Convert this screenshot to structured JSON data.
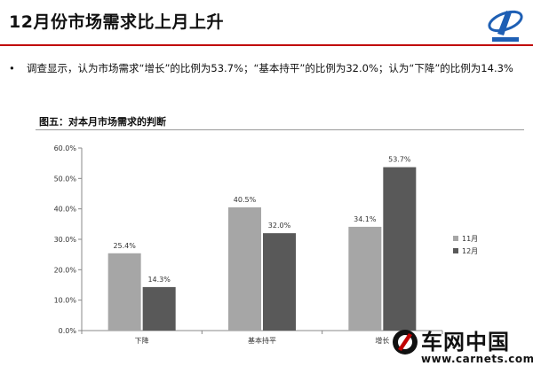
{
  "page": {
    "title": "12月份市场需求比上月上升",
    "bullet_symbol": "•",
    "bullet_text": "调查显示，认为市场需求“增长”的比例为53.7%；“基本持平”的比例为32.0%；认为“下降”的比例为14.3%",
    "figure_title": "图五：对本月市场需求的判断",
    "accent_color": "#c00000"
  },
  "watermark": {
    "name": "车网中国",
    "url": "www.carnets.com.cn",
    "icon": "car-wheel-logo-icon"
  },
  "logo": {
    "icon": "blue-swirl-logo-icon"
  },
  "chart_data": {
    "type": "bar",
    "categories": [
      "下降",
      "基本持平",
      "增长"
    ],
    "series": [
      {
        "name": "11月",
        "values": [
          25.4,
          40.5,
          34.1
        ],
        "value_labels": [
          "25.4%",
          "40.5%",
          "34.1%"
        ],
        "color": "#a6a6a6"
      },
      {
        "name": "12月",
        "values": [
          14.3,
          32.0,
          53.7
        ],
        "value_labels": [
          "14.3%",
          "32.0%",
          "53.7%"
        ],
        "color": "#595959"
      }
    ],
    "ylim": [
      0,
      60
    ],
    "yticks": [
      0,
      10,
      20,
      30,
      40,
      50,
      60
    ],
    "ytick_labels": [
      "0.0%",
      "10.0%",
      "20.0%",
      "30.0%",
      "40.0%",
      "50.0%",
      "60.0%"
    ],
    "legend_position": "right",
    "grid": false,
    "title": "",
    "xlabel": "",
    "ylabel": ""
  }
}
